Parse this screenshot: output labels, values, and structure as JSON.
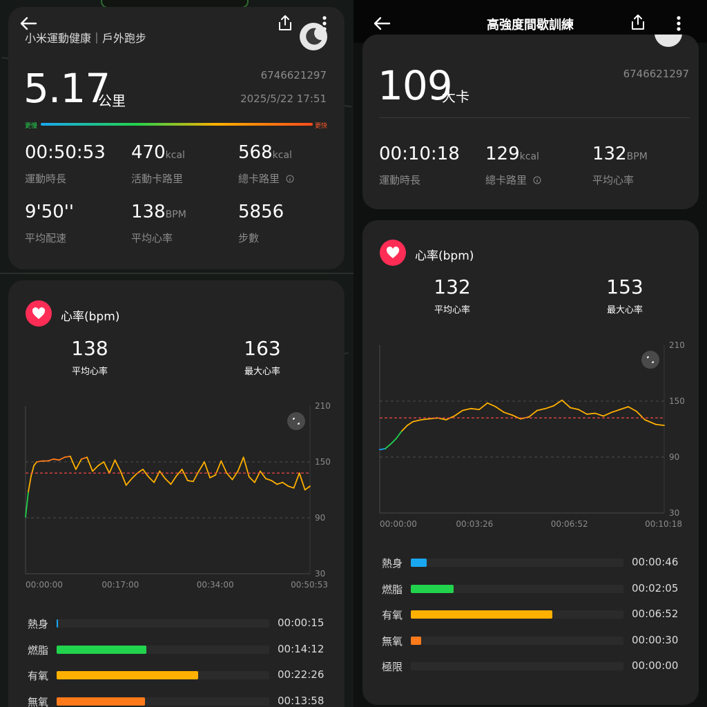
{
  "colors": {
    "warmup": "#1aa7f2",
    "fatburn": "#22d34d",
    "aerobic": "#ffb000",
    "anaerobic": "#ff7a1a",
    "heart_badge": "#ff2d55",
    "avg_line": "#e24444"
  },
  "left": {
    "title": "小米運動健康｜戶外跑步",
    "distance": "5.17",
    "distance_unit": "公里",
    "record_id": "6746621297",
    "datetime": "2025/5/22 17:51",
    "pace_slow_label": "更慢",
    "pace_fast_label": "更快",
    "stats": [
      {
        "value": "00:50:53",
        "unit": "",
        "label": "運動時長",
        "info": false
      },
      {
        "value": "470",
        "unit": "kcal",
        "label": "活動卡路里",
        "info": false
      },
      {
        "value": "568",
        "unit": "kcal",
        "label": "總卡路里",
        "info": true
      },
      {
        "value": "9'50''",
        "unit": "",
        "label": "平均配速",
        "info": false
      },
      {
        "value": "138",
        "unit": "BPM",
        "label": "平均心率",
        "info": false
      },
      {
        "value": "5856",
        "unit": "",
        "label": "步數",
        "info": false
      }
    ],
    "hr_title": "心率(bpm)",
    "hr_avg": "138",
    "hr_avg_label": "平均心率",
    "hr_max": "163",
    "hr_max_label": "最大心率",
    "zones": [
      {
        "name": "熱身",
        "time": "00:00:15",
        "color": "#1aa7f2",
        "fraction": 0.005
      },
      {
        "name": "燃脂",
        "time": "00:14:12",
        "color": "#22d34d",
        "fraction": 0.279
      },
      {
        "name": "有氧",
        "time": "00:22:26",
        "color": "#ffb000",
        "fraction": 0.441
      },
      {
        "name": "無氧",
        "time": "00:13:58",
        "color": "#ff7a1a",
        "fraction": 0.275
      }
    ]
  },
  "right": {
    "title": "高強度間歇訓練",
    "calories": "109",
    "calories_unit": "大卡",
    "record_id": "6746621297",
    "stats": [
      {
        "value": "00:10:18",
        "unit": "",
        "label": "運動時長",
        "info": false
      },
      {
        "value": "129",
        "unit": "kcal",
        "label": "總卡路里",
        "info": true
      },
      {
        "value": "132",
        "unit": "BPM",
        "label": "平均心率",
        "info": false
      }
    ],
    "hr_title": "心率(bpm)",
    "hr_avg": "132",
    "hr_avg_label": "平均心率",
    "hr_max": "153",
    "hr_max_label": "最大心率",
    "zones": [
      {
        "name": "熱身",
        "time": "00:00:46",
        "color": "#1aa7f2",
        "fraction": 0.074
      },
      {
        "name": "燃脂",
        "time": "00:02:05",
        "color": "#22d34d",
        "fraction": 0.202
      },
      {
        "name": "有氧",
        "time": "00:06:52",
        "color": "#ffb000",
        "fraction": 0.667
      },
      {
        "name": "無氧",
        "time": "00:00:30",
        "color": "#ff7a1a",
        "fraction": 0.049
      },
      {
        "name": "極限",
        "time": "00:00:00",
        "color": "#e5484d",
        "fraction": 0
      }
    ]
  },
  "chart_data": [
    {
      "type": "line",
      "title": "心率(bpm)",
      "xlabel": "",
      "ylabel": "",
      "ylim": [
        30,
        210
      ],
      "yticks": [
        "210",
        "150",
        "90",
        "30"
      ],
      "xticks": [
        "00:00:00",
        "00:17:00",
        "00:34:00",
        "00:50:53"
      ],
      "x_minutes": [
        0,
        0.5,
        1,
        1.5,
        2,
        3,
        4,
        5,
        6,
        7,
        8,
        9,
        10,
        11,
        12,
        13,
        14,
        15,
        16,
        17,
        18,
        19,
        20,
        21,
        22,
        23,
        24,
        25,
        26,
        27,
        28,
        29,
        30,
        31,
        32,
        33,
        34,
        35,
        36,
        37,
        38,
        39,
        40,
        41,
        42,
        43,
        44,
        45,
        46,
        47,
        48,
        49,
        50,
        50.9
      ],
      "y": [
        91,
        118,
        135,
        146,
        150,
        151,
        151,
        153,
        152,
        155,
        156,
        142,
        153,
        155,
        140,
        146,
        150,
        138,
        152,
        140,
        125,
        132,
        138,
        142,
        134,
        128,
        140,
        132,
        126,
        135,
        142,
        130,
        129,
        140,
        150,
        133,
        136,
        151,
        138,
        131,
        140,
        155,
        134,
        128,
        140,
        132,
        130,
        126,
        128,
        124,
        122,
        138,
        120,
        124
      ],
      "avg_line": 138
    },
    {
      "type": "line",
      "title": "心率(bpm)",
      "xlabel": "",
      "ylabel": "",
      "ylim": [
        30,
        210
      ],
      "yticks": [
        "210",
        "150",
        "90",
        "30"
      ],
      "xticks": [
        "00:00:00",
        "00:03:26",
        "00:06:52",
        "00:10:18"
      ],
      "x_minutes": [
        0,
        0.2,
        0.4,
        0.6,
        0.8,
        1.0,
        1.2,
        1.5,
        1.8,
        2.1,
        2.4,
        2.7,
        3.0,
        3.3,
        3.6,
        3.9,
        4.2,
        4.5,
        4.8,
        5.1,
        5.4,
        5.7,
        6.0,
        6.3,
        6.6,
        6.9,
        7.2,
        7.5,
        7.8,
        8.1,
        8.4,
        8.7,
        9.0,
        9.3,
        9.6,
        10.0,
        10.3
      ],
      "y": [
        98,
        99,
        104,
        110,
        118,
        124,
        128,
        130,
        131,
        132,
        130,
        134,
        140,
        142,
        141,
        148,
        144,
        138,
        135,
        131,
        133,
        140,
        142,
        145,
        151,
        143,
        141,
        136,
        137,
        134,
        138,
        141,
        144,
        139,
        130,
        125,
        124
      ],
      "avg_line": 132
    }
  ]
}
